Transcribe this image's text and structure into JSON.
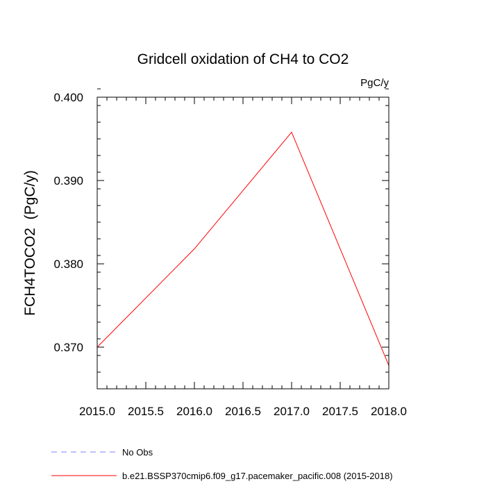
{
  "chart_data": {
    "type": "line",
    "title": "Gridcell oxidation of CH4 to CO2",
    "units_label": "PgC/y",
    "ylabel": "FCH4TOCO2  (PgC/y)",
    "xlabel": "",
    "xlim": [
      2015.0,
      2018.0
    ],
    "ylim": [
      0.365,
      0.4
    ],
    "x_ticks": [
      2015.0,
      2015.5,
      2016.0,
      2016.5,
      2017.0,
      2017.5,
      2018.0
    ],
    "x_tick_labels": [
      "2015.0",
      "2015.5",
      "2016.0",
      "2016.5",
      "2017.0",
      "2017.5",
      "2018.0"
    ],
    "x_minor_step": 0.1,
    "y_ticks": [
      0.37,
      0.38,
      0.39,
      0.4
    ],
    "y_tick_labels": [
      "0.370",
      "0.380",
      "0.390",
      "0.400"
    ],
    "y_minor_step": 0.002,
    "grid": false,
    "legend_position": "bottom",
    "series": [
      {
        "name": "No Obs",
        "style": "dashed",
        "color": "#8080ff",
        "x": [],
        "y": []
      },
      {
        "name": "b.e21.BSSP370cmip6.f09_g17.pacemaker_pacific.008 (2015-2018)",
        "style": "solid",
        "color": "#ff0000",
        "x": [
          2015.0,
          2016.0,
          2017.0,
          2018.0
        ],
        "y": [
          0.37,
          0.3818,
          0.3958,
          0.3678
        ]
      }
    ]
  }
}
